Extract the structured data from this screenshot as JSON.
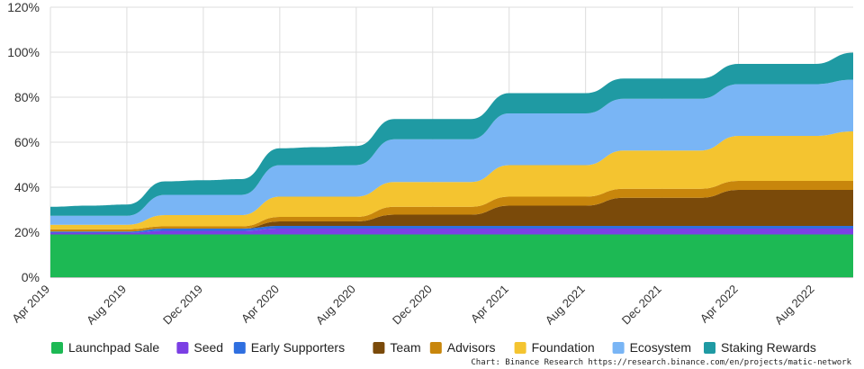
{
  "chart_data": {
    "type": "area",
    "stacked": true,
    "x": [
      "Apr 2019",
      "Jun 2019",
      "Aug 2019",
      "Oct 2019",
      "Dec 2019",
      "Feb 2020",
      "Apr 2020",
      "Jun 2020",
      "Aug 2020",
      "Oct 2020",
      "Dec 2020",
      "Feb 2021",
      "Apr 2021",
      "Jun 2021",
      "Aug 2021",
      "Oct 2021",
      "Dec 2021",
      "Feb 2022",
      "Apr 2022",
      "Jun 2022",
      "Aug 2022",
      "Oct 2022"
    ],
    "x_tick_labels": [
      "Apr 2019",
      "Aug 2019",
      "Dec 2019",
      "Apr 2020",
      "Aug 2020",
      "Dec 2020",
      "Apr 2021",
      "Aug 2021",
      "Dec 2021",
      "Apr 2022",
      "Aug 2022"
    ],
    "y_tick_labels": [
      "0%",
      "20%",
      "40%",
      "60%",
      "80%",
      "100%",
      "120%"
    ],
    "ylim": [
      0,
      120
    ],
    "grid": true,
    "legend_position": "bottom",
    "series": [
      {
        "name": "Launchpad Sale",
        "color": "#1db954",
        "values": [
          19,
          19,
          19,
          19,
          19,
          19,
          19,
          19,
          19,
          19,
          19,
          19,
          19,
          19,
          19,
          19,
          19,
          19,
          19,
          19,
          19,
          19
        ]
      },
      {
        "name": "Seed",
        "color": "#7b3fe4",
        "values": [
          0.8,
          0.8,
          0.8,
          1.6,
          1.6,
          1.6,
          2.6,
          2.6,
          2.6,
          2.6,
          2.6,
          2.6,
          2.6,
          2.6,
          2.6,
          2.6,
          2.6,
          2.6,
          2.6,
          2.6,
          2.6,
          2.6
        ]
      },
      {
        "name": "Early Supporters",
        "color": "#2f6fe0",
        "values": [
          0.5,
          0.5,
          0.5,
          1.0,
          1.0,
          1.0,
          1.2,
          1.2,
          1.2,
          1.2,
          1.2,
          1.2,
          1.2,
          1.2,
          1.2,
          1.2,
          1.2,
          1.2,
          1.2,
          1.2,
          1.2,
          1.2
        ]
      },
      {
        "name": "Team",
        "color": "#7a4a0a",
        "values": [
          0,
          0,
          0,
          0,
          0,
          0,
          2,
          2,
          2,
          5,
          5,
          5,
          9,
          9,
          9,
          12.5,
          12.5,
          12.5,
          16,
          16,
          16,
          16
        ]
      },
      {
        "name": "Advisors",
        "color": "#c8860c",
        "values": [
          1,
          1,
          1,
          1,
          1,
          1,
          2,
          2,
          2,
          3.5,
          3.5,
          3.5,
          4,
          4,
          4,
          4,
          4,
          4,
          4,
          4,
          4,
          4
        ]
      },
      {
        "name": "Foundation",
        "color": "#f4c430",
        "values": [
          2,
          2,
          2,
          5,
          5,
          5,
          9,
          9,
          9,
          11,
          11,
          11,
          14,
          14,
          14,
          17,
          17,
          17,
          20,
          20,
          20,
          22
        ]
      },
      {
        "name": "Ecosystem",
        "color": "#79b5f5",
        "values": [
          4,
          4,
          4,
          9,
          9,
          9,
          14,
          14,
          14,
          19,
          19,
          19,
          23,
          23,
          23,
          23,
          23,
          23,
          23,
          23,
          23,
          23
        ]
      },
      {
        "name": "Staking Rewards",
        "color": "#1f9aa3",
        "values": [
          4,
          4.5,
          5,
          6,
          6.5,
          7,
          7.5,
          8,
          8.5,
          9,
          9,
          9,
          9,
          9,
          9,
          9,
          9,
          9,
          9,
          9,
          9,
          12
        ]
      }
    ]
  },
  "credit_text": "Chart: Binance Research https://research.binance.com/en/projects/matic-network"
}
